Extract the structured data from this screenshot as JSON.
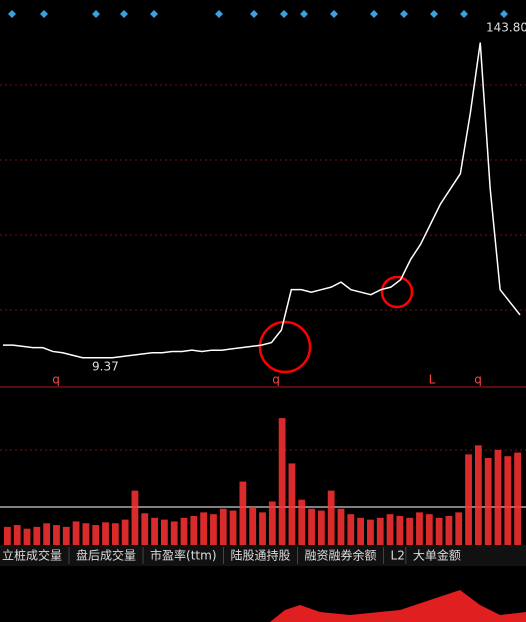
{
  "chart_data": [
    {
      "type": "line",
      "color": "#ffffff",
      "x": [
        0,
        1,
        2,
        3,
        4,
        5,
        6,
        7,
        8,
        9,
        10,
        11,
        12,
        13,
        14,
        15,
        16,
        17,
        18,
        19,
        20,
        21,
        22,
        23,
        24,
        25,
        26,
        27,
        28,
        29,
        30,
        31,
        32,
        33,
        34,
        35,
        36,
        37,
        38,
        39,
        40,
        41,
        42,
        43,
        44,
        45,
        46,
        47,
        48,
        49,
        50,
        51,
        52
      ],
      "values": [
        18,
        18,
        17.5,
        17,
        17,
        15.5,
        15,
        14,
        13,
        13,
        13,
        13,
        13.5,
        14,
        14.5,
        15,
        15,
        15.5,
        15.5,
        16,
        15.5,
        16,
        16,
        16.5,
        17,
        17.5,
        18,
        19,
        24,
        40,
        40,
        39,
        40,
        41,
        43,
        40,
        39,
        38,
        40,
        41,
        44,
        52,
        58,
        66,
        74,
        80,
        86,
        110,
        138,
        80,
        40,
        35,
        30
      ],
      "xlim": [
        0,
        52.3
      ],
      "ylim": [
        1.4,
        154.9
      ],
      "annotations": [
        "143.80",
        "9.37",
        "q",
        "q",
        "q",
        "L"
      ]
    },
    {
      "type": "bar",
      "color": "#ff3232",
      "values": [
        20,
        22,
        18,
        20,
        24,
        22,
        20,
        26,
        24,
        22,
        25,
        24,
        28,
        60,
        35,
        30,
        28,
        26,
        30,
        32,
        36,
        34,
        40,
        38,
        70,
        42,
        36,
        48,
        140,
        90,
        50,
        40,
        38,
        60,
        40,
        34,
        30,
        28,
        30,
        34,
        32,
        30,
        36,
        34,
        30,
        32,
        36,
        100,
        110,
        96,
        105,
        98,
        102
      ],
      "ylim": [
        0,
        160
      ]
    }
  ],
  "tabs": [
    "立桩成交量",
    "盘后成交量",
    "市盈率(ttm)",
    "陆股通持股",
    "融资融券余额",
    "L2",
    "大单金额"
  ]
}
